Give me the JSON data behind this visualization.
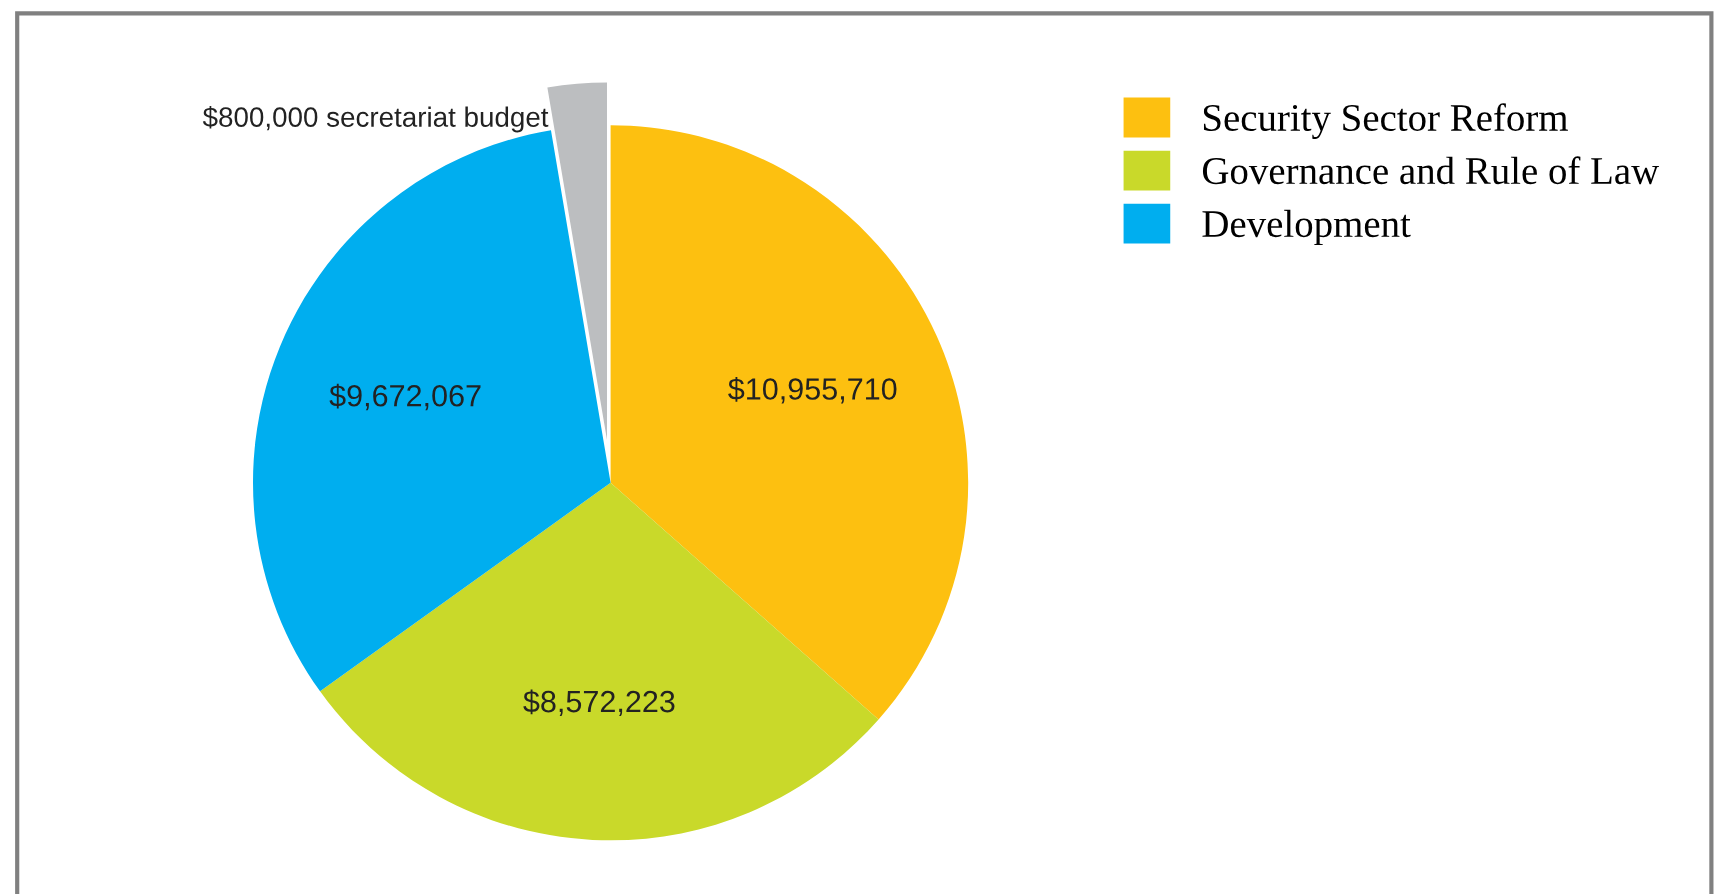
{
  "chart_data": {
    "type": "pie",
    "categories": [
      "Security Sector Reform",
      "Governance and Rule of Law",
      "Development",
      null
    ],
    "values": [
      10955710,
      8572223,
      9672067,
      800000
    ],
    "colors": [
      "#fdc010",
      "#c9d92a",
      "#00aeef",
      "#bcbec0"
    ],
    "value_labels": [
      "$10,955,710",
      "$8,572,223",
      "$9,672,067",
      "$800,000 secretariat budget"
    ],
    "legend": "top right"
  }
}
